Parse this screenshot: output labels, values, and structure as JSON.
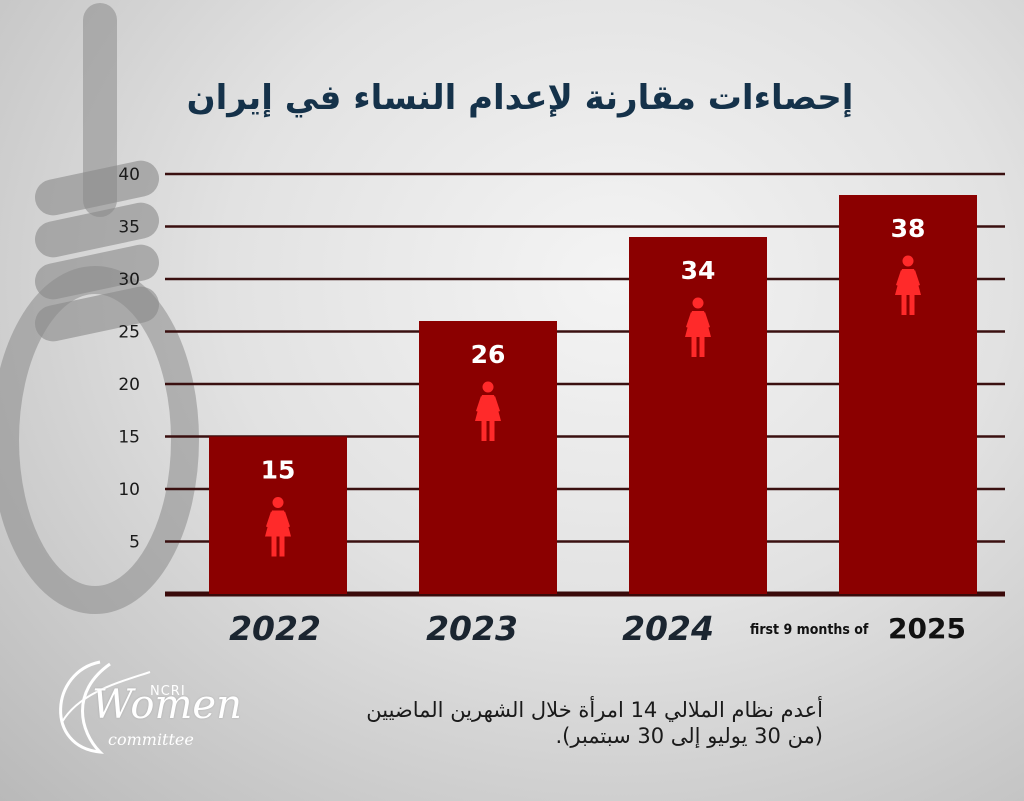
{
  "title": "إحصاءات مقارنة لإعدام النساء في إيران",
  "chart_data": {
    "type": "bar",
    "categories": [
      "2022",
      "2023",
      "2024",
      "2025"
    ],
    "values": [
      15,
      26,
      34,
      38
    ],
    "ylim": [
      0,
      40
    ],
    "yticks": [
      5,
      10,
      15,
      20,
      25,
      30,
      35,
      40
    ],
    "grid": true,
    "bar_color": "#8b0000",
    "icon": "woman-icon",
    "icon_color": "#ff2a2a"
  },
  "note": {
    "small": "first 9 months of",
    "year": "2025"
  },
  "footer": {
    "line1": "أعدم  نظام الملالي 14 امرأة خلال الشهرين الماضيين",
    "line2": "(من 30 يوليو إلى 30 سبتمبر)."
  },
  "logo": {
    "ncri": "NCRI",
    "women": "Women",
    "committee": "committee"
  }
}
